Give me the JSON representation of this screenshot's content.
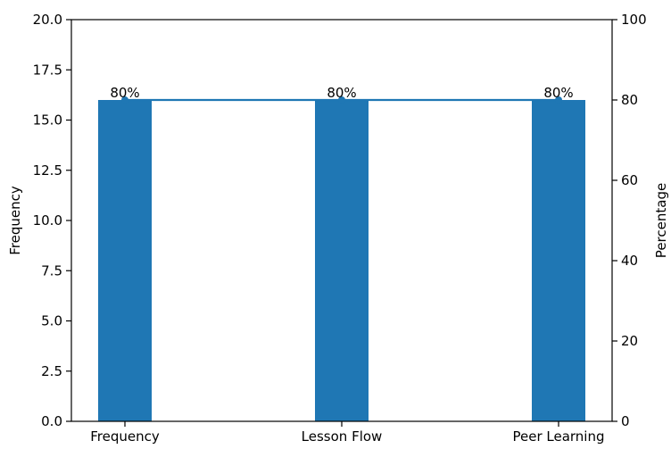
{
  "chart_data": {
    "type": "bar",
    "categories": [
      "Frequency",
      "Lesson Flow",
      "Peer Learning"
    ],
    "series": [
      {
        "name": "",
        "axis": "left",
        "type": "bar",
        "values": [
          16,
          16,
          16
        ]
      },
      {
        "name": "",
        "axis": "right",
        "type": "line",
        "values": [
          80,
          80,
          80
        ]
      }
    ],
    "data_labels": [
      "80%",
      "80%",
      "80%"
    ],
    "title": "",
    "xlabel": "",
    "ylabel": "Frequency",
    "ylabel_right": "Percentage",
    "ylim": [
      0,
      20
    ],
    "ylim_right": [
      0,
      100
    ],
    "yticks": [
      "0.0",
      "2.5",
      "5.0",
      "7.5",
      "10.0",
      "12.5",
      "15.0",
      "17.5",
      "20.0"
    ],
    "yticks_right": [
      "0",
      "20",
      "40",
      "60",
      "80",
      "100"
    ],
    "grid": false,
    "colors": {
      "bar": "#1f77b4",
      "line": "#1f77b4",
      "axis": "#000000"
    }
  }
}
